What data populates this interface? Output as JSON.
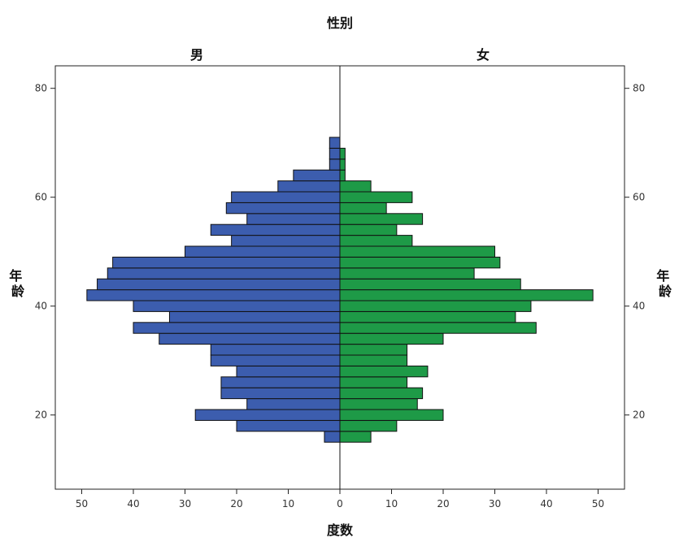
{
  "chart_data": {
    "type": "bar",
    "title": "性别",
    "panels": [
      "男",
      "女"
    ],
    "xlabel": "度数",
    "ylabel": "年龄",
    "x_ticks": [
      "50",
      "40",
      "30",
      "20",
      "10",
      "0",
      "10",
      "20",
      "30",
      "40",
      "50"
    ],
    "y_ticks": [
      "80",
      "60",
      "40",
      "20"
    ],
    "y_range": [
      5,
      85
    ],
    "x_range": [
      0,
      55
    ],
    "categories": [
      16,
      18,
      20,
      22,
      24,
      26,
      28,
      30,
      32,
      34,
      36,
      38,
      40,
      42,
      44,
      46,
      48,
      50,
      52,
      54,
      56,
      58,
      60,
      62,
      64,
      66,
      68,
      70
    ],
    "series": [
      {
        "name": "男",
        "values": [
          3,
          20,
          28,
          18,
          23,
          23,
          20,
          25,
          25,
          35,
          40,
          33,
          40,
          49,
          47,
          45,
          44,
          30,
          21,
          25,
          18,
          22,
          21,
          12,
          9,
          2,
          2,
          2
        ]
      },
      {
        "name": "女",
        "values": [
          6,
          11,
          20,
          15,
          16,
          13,
          17,
          13,
          13,
          20,
          38,
          34,
          37,
          49,
          35,
          26,
          31,
          30,
          14,
          11,
          16,
          9,
          14,
          6,
          1,
          1,
          1,
          0
        ]
      }
    ],
    "colors": {
      "male": "#3C5DAE",
      "female": "#1E9A47",
      "bar_stroke": "#111111"
    }
  }
}
